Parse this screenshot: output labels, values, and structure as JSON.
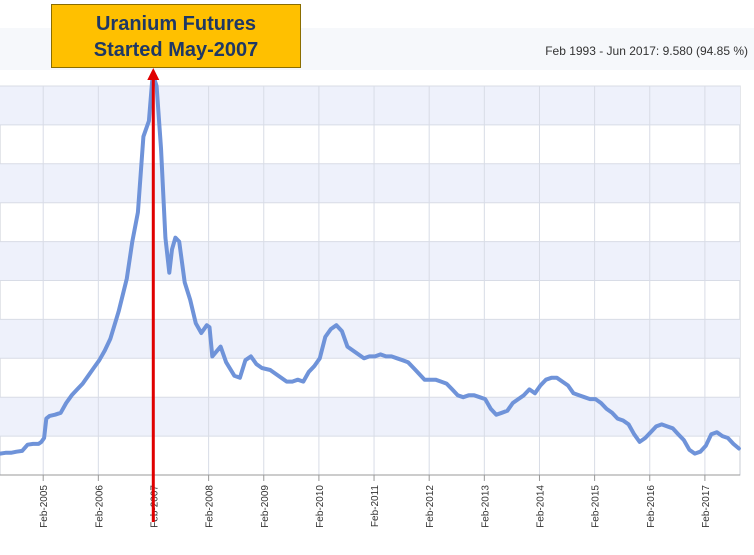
{
  "header": {
    "range_summary": "Feb 1993 - Jun 2017: 9.580 (94.85 %)"
  },
  "callout": {
    "line1": "Uranium Futures",
    "line2": "Started May-2007",
    "box_color": "#ffc000",
    "text_color": "#1f3864",
    "arrow_color": "#e00000"
  },
  "chart_data": {
    "type": "line",
    "title": "",
    "xlabel": "",
    "ylabel": "",
    "x_ticks": [
      "Feb-2005",
      "Feb-2006",
      "Feb-2007",
      "Feb-2008",
      "Feb-2009",
      "Feb-2010",
      "Feb-2011",
      "Feb-2012",
      "Feb-2013",
      "Feb-2014",
      "Feb-2015",
      "Feb-2016",
      "Feb-2017"
    ],
    "xlim": [
      2004.3,
      2017.72
    ],
    "ylim": [
      0,
      10
    ],
    "grid": true,
    "line_color": "#6f93d9",
    "grid_band_color": "#eef1fb",
    "series": [
      {
        "points": [
          [
            2004.3,
            0.55
          ],
          [
            2004.4,
            0.57
          ],
          [
            2004.5,
            0.57
          ],
          [
            2004.6,
            0.6
          ],
          [
            2004.7,
            0.62
          ],
          [
            2004.8,
            0.78
          ],
          [
            2004.9,
            0.8
          ],
          [
            2005.0,
            0.8
          ],
          [
            2005.05,
            0.85
          ],
          [
            2005.1,
            0.95
          ],
          [
            2005.14,
            1.45
          ],
          [
            2005.2,
            1.52
          ],
          [
            2005.3,
            1.55
          ],
          [
            2005.4,
            1.6
          ],
          [
            2005.5,
            1.85
          ],
          [
            2005.6,
            2.05
          ],
          [
            2005.7,
            2.2
          ],
          [
            2005.8,
            2.35
          ],
          [
            2005.9,
            2.55
          ],
          [
            2006.0,
            2.75
          ],
          [
            2006.1,
            2.95
          ],
          [
            2006.2,
            3.2
          ],
          [
            2006.3,
            3.5
          ],
          [
            2006.45,
            4.2
          ],
          [
            2006.6,
            5.05
          ],
          [
            2006.7,
            6.0
          ],
          [
            2006.8,
            6.75
          ],
          [
            2006.9,
            8.7
          ],
          [
            2007.0,
            9.1
          ],
          [
            2007.07,
            10.3
          ],
          [
            2007.14,
            10.0
          ],
          [
            2007.22,
            8.4
          ],
          [
            2007.3,
            6.1
          ],
          [
            2007.37,
            5.2
          ],
          [
            2007.42,
            5.8
          ],
          [
            2007.48,
            6.1
          ],
          [
            2007.55,
            6.0
          ],
          [
            2007.65,
            4.95
          ],
          [
            2007.75,
            4.5
          ],
          [
            2007.85,
            3.9
          ],
          [
            2007.95,
            3.65
          ],
          [
            2008.05,
            3.85
          ],
          [
            2008.1,
            3.8
          ],
          [
            2008.15,
            3.05
          ],
          [
            2008.3,
            3.3
          ],
          [
            2008.4,
            2.9
          ],
          [
            2008.55,
            2.55
          ],
          [
            2008.65,
            2.5
          ],
          [
            2008.75,
            2.95
          ],
          [
            2008.85,
            3.05
          ],
          [
            2008.95,
            2.85
          ],
          [
            2009.05,
            2.75
          ],
          [
            2009.2,
            2.7
          ],
          [
            2009.3,
            2.6
          ],
          [
            2009.4,
            2.5
          ],
          [
            2009.5,
            2.4
          ],
          [
            2009.6,
            2.4
          ],
          [
            2009.7,
            2.45
          ],
          [
            2009.8,
            2.4
          ],
          [
            2009.9,
            2.65
          ],
          [
            2010.0,
            2.8
          ],
          [
            2010.1,
            3.0
          ],
          [
            2010.2,
            3.55
          ],
          [
            2010.3,
            3.75
          ],
          [
            2010.4,
            3.85
          ],
          [
            2010.5,
            3.7
          ],
          [
            2010.6,
            3.3
          ],
          [
            2010.7,
            3.2
          ],
          [
            2010.8,
            3.1
          ],
          [
            2010.9,
            3.0
          ],
          [
            2011.0,
            3.05
          ],
          [
            2011.1,
            3.05
          ],
          [
            2011.2,
            3.1
          ],
          [
            2011.3,
            3.05
          ],
          [
            2011.4,
            3.05
          ],
          [
            2011.5,
            3.0
          ],
          [
            2011.6,
            2.95
          ],
          [
            2011.7,
            2.9
          ],
          [
            2011.8,
            2.75
          ],
          [
            2011.9,
            2.6
          ],
          [
            2012.0,
            2.45
          ],
          [
            2012.1,
            2.45
          ],
          [
            2012.2,
            2.45
          ],
          [
            2012.3,
            2.4
          ],
          [
            2012.4,
            2.35
          ],
          [
            2012.5,
            2.2
          ],
          [
            2012.6,
            2.05
          ],
          [
            2012.7,
            2.0
          ],
          [
            2012.8,
            2.05
          ],
          [
            2012.9,
            2.05
          ],
          [
            2013.0,
            2.0
          ],
          [
            2013.1,
            1.95
          ],
          [
            2013.2,
            1.7
          ],
          [
            2013.3,
            1.55
          ],
          [
            2013.4,
            1.6
          ],
          [
            2013.5,
            1.65
          ],
          [
            2013.6,
            1.85
          ],
          [
            2013.7,
            1.95
          ],
          [
            2013.8,
            2.05
          ],
          [
            2013.9,
            2.2
          ],
          [
            2014.0,
            2.1
          ],
          [
            2014.1,
            2.3
          ],
          [
            2014.2,
            2.45
          ],
          [
            2014.3,
            2.5
          ],
          [
            2014.4,
            2.5
          ],
          [
            2014.5,
            2.4
          ],
          [
            2014.6,
            2.3
          ],
          [
            2014.7,
            2.1
          ],
          [
            2014.8,
            2.05
          ],
          [
            2014.9,
            2.0
          ],
          [
            2015.0,
            1.95
          ],
          [
            2015.1,
            1.95
          ],
          [
            2015.2,
            1.85
          ],
          [
            2015.3,
            1.7
          ],
          [
            2015.4,
            1.6
          ],
          [
            2015.5,
            1.45
          ],
          [
            2015.6,
            1.4
          ],
          [
            2015.7,
            1.3
          ],
          [
            2015.8,
            1.05
          ],
          [
            2015.9,
            0.85
          ],
          [
            2016.0,
            0.95
          ],
          [
            2016.1,
            1.1
          ],
          [
            2016.2,
            1.25
          ],
          [
            2016.3,
            1.3
          ],
          [
            2016.4,
            1.25
          ],
          [
            2016.5,
            1.2
          ],
          [
            2016.6,
            1.05
          ],
          [
            2016.7,
            0.9
          ],
          [
            2016.8,
            0.65
          ],
          [
            2016.9,
            0.55
          ],
          [
            2017.0,
            0.6
          ],
          [
            2017.1,
            0.75
          ],
          [
            2017.2,
            1.05
          ],
          [
            2017.3,
            1.1
          ],
          [
            2017.4,
            1.0
          ],
          [
            2017.5,
            0.95
          ],
          [
            2017.6,
            0.8
          ],
          [
            2017.7,
            0.68
          ]
        ]
      }
    ],
    "marker_x": 2007.08
  }
}
